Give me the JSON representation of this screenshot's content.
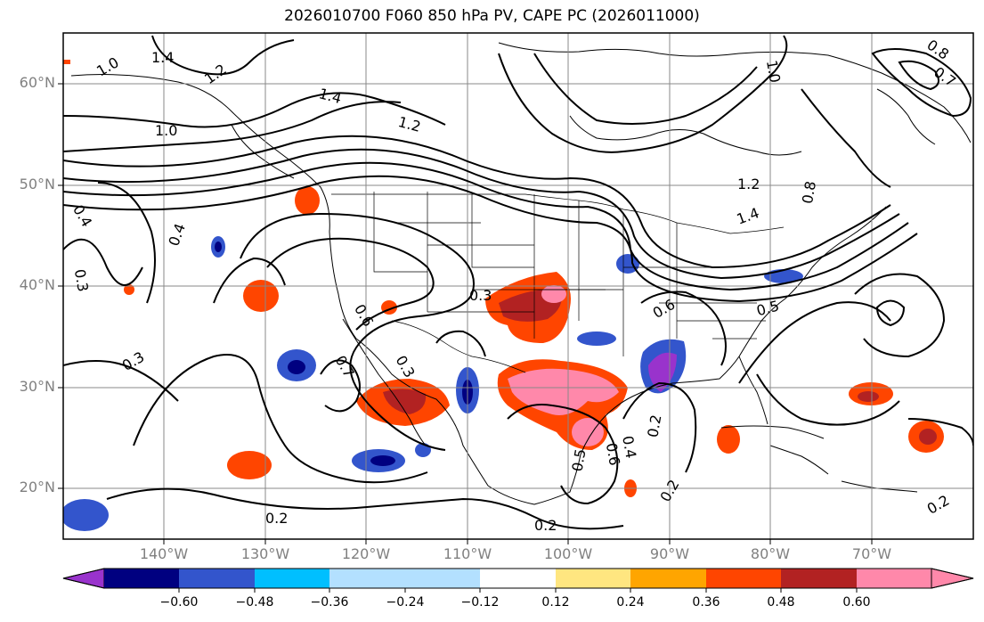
{
  "title": "2026010700 F060 850 hPa PV, CAPE PC (2026011000)",
  "lat_labels": [
    "60°N",
    "50°N",
    "40°N",
    "30°N",
    "20°N"
  ],
  "lon_labels": [
    "140°W",
    "130°W",
    "120°W",
    "110°W",
    "100°W",
    "90°W",
    "80°W",
    "70°W"
  ],
  "colorbar": {
    "labels": [
      "−0.60",
      "−0.48",
      "−0.36",
      "−0.24",
      "−0.12",
      "0.12",
      "0.24",
      "0.36",
      "0.48",
      "0.60"
    ],
    "colors": [
      "#9933cc",
      "#000080",
      "#3355cc",
      "#00bfff",
      "#b3e0ff",
      "#ffffff",
      "#ffe680",
      "#ffa500",
      "#ff4500",
      "#b22222",
      "#ff88aa"
    ]
  },
  "contour_labels": [
    "1.4",
    "1.2",
    "1.0",
    "1.4",
    "1.2",
    "1.0",
    "0.4",
    "0.3",
    "0.4",
    "0.3",
    "0.6",
    "0.7",
    "0.3",
    "0.6",
    "1.2",
    "1.4",
    "0.5",
    "0.8",
    "0.7",
    "0.8",
    "1.0",
    "0.2",
    "0.2",
    "0.2",
    "0.4",
    "0.6",
    "0.5",
    "0.2",
    "0.3",
    "0.2"
  ],
  "colors": {
    "contour": "#000000",
    "border": "#000000",
    "grid": "#888888"
  }
}
